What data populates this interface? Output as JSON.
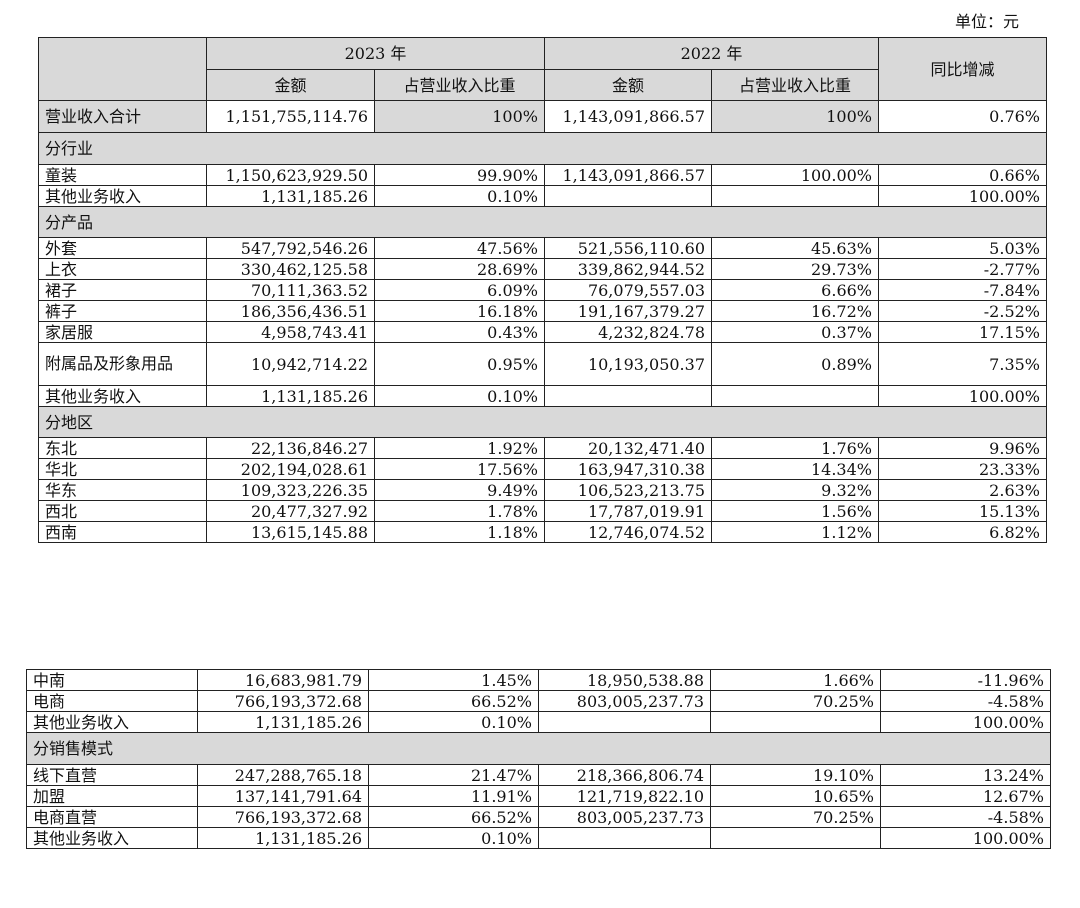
{
  "unit_label": "单位：元",
  "header": {
    "year_2023": "2023 年",
    "year_2022": "2022 年",
    "amount": "金额",
    "ratio": "占营业收入比重",
    "yoy": "同比增减"
  },
  "table1": {
    "total": {
      "label": "营业收入合计",
      "a2023": "1,151,755,114.76",
      "r2023": "100%",
      "a2022": "1,143,091,866.57",
      "r2022": "100%",
      "yoy": "0.76%"
    },
    "sec_industry": "分行业",
    "industry": [
      {
        "label": "童装",
        "a2023": "1,150,623,929.50",
        "r2023": "99.90%",
        "a2022": "1,143,091,866.57",
        "r2022": "100.00%",
        "yoy": "0.66%"
      },
      {
        "label": "其他业务收入",
        "a2023": "1,131,185.26",
        "r2023": "0.10%",
        "a2022": "",
        "r2022": "",
        "yoy": "100.00%"
      }
    ],
    "sec_product": "分产品",
    "product": [
      {
        "label": "外套",
        "a2023": "547,792,546.26",
        "r2023": "47.56%",
        "a2022": "521,556,110.60",
        "r2022": "45.63%",
        "yoy": "5.03%"
      },
      {
        "label": "上衣",
        "a2023": "330,462,125.58",
        "r2023": "28.69%",
        "a2022": "339,862,944.52",
        "r2022": "29.73%",
        "yoy": "-2.77%"
      },
      {
        "label": "裙子",
        "a2023": "70,111,363.52",
        "r2023": "6.09%",
        "a2022": "76,079,557.03",
        "r2022": "6.66%",
        "yoy": "-7.84%"
      },
      {
        "label": "裤子",
        "a2023": "186,356,436.51",
        "r2023": "16.18%",
        "a2022": "191,167,379.27",
        "r2022": "16.72%",
        "yoy": "-2.52%"
      },
      {
        "label": "家居服",
        "a2023": "4,958,743.41",
        "r2023": "0.43%",
        "a2022": "4,232,824.78",
        "r2022": "0.37%",
        "yoy": "17.15%"
      },
      {
        "label": "附属品及形象用品",
        "a2023": "10,942,714.22",
        "r2023": "0.95%",
        "a2022": "10,193,050.37",
        "r2022": "0.89%",
        "yoy": "7.35%"
      },
      {
        "label": "其他业务收入",
        "a2023": "1,131,185.26",
        "r2023": "0.10%",
        "a2022": "",
        "r2022": "",
        "yoy": "100.00%"
      }
    ],
    "sec_region": "分地区",
    "region": [
      {
        "label": "东北",
        "a2023": "22,136,846.27",
        "r2023": "1.92%",
        "a2022": "20,132,471.40",
        "r2022": "1.76%",
        "yoy": "9.96%"
      },
      {
        "label": "华北",
        "a2023": "202,194,028.61",
        "r2023": "17.56%",
        "a2022": "163,947,310.38",
        "r2022": "14.34%",
        "yoy": "23.33%"
      },
      {
        "label": "华东",
        "a2023": "109,323,226.35",
        "r2023": "9.49%",
        "a2022": "106,523,213.75",
        "r2022": "9.32%",
        "yoy": "2.63%"
      },
      {
        "label": "西北",
        "a2023": "20,477,327.92",
        "r2023": "1.78%",
        "a2022": "17,787,019.91",
        "r2022": "1.56%",
        "yoy": "15.13%"
      },
      {
        "label": "西南",
        "a2023": "13,615,145.88",
        "r2023": "1.18%",
        "a2022": "12,746,074.52",
        "r2022": "1.12%",
        "yoy": "6.82%"
      }
    ]
  },
  "table2": {
    "region_cont": [
      {
        "label": "中南",
        "a2023": "16,683,981.79",
        "r2023": "1.45%",
        "a2022": "18,950,538.88",
        "r2022": "1.66%",
        "yoy": "-11.96%"
      },
      {
        "label": "电商",
        "a2023": "766,193,372.68",
        "r2023": "66.52%",
        "a2022": "803,005,237.73",
        "r2022": "70.25%",
        "yoy": "-4.58%"
      },
      {
        "label": "其他业务收入",
        "a2023": "1,131,185.26",
        "r2023": "0.10%",
        "a2022": "",
        "r2022": "",
        "yoy": "100.00%"
      }
    ],
    "sec_sales": "分销售模式",
    "sales": [
      {
        "label": "线下直营",
        "a2023": "247,288,765.18",
        "r2023": "21.47%",
        "a2022": "218,366,806.74",
        "r2022": "19.10%",
        "yoy": "13.24%"
      },
      {
        "label": "加盟",
        "a2023": "137,141,791.64",
        "r2023": "11.91%",
        "a2022": "121,719,822.10",
        "r2022": "10.65%",
        "yoy": "12.67%"
      },
      {
        "label": "电商直营",
        "a2023": "766,193,372.68",
        "r2023": "66.52%",
        "a2022": "803,005,237.73",
        "r2022": "70.25%",
        "yoy": "-4.58%"
      },
      {
        "label": "其他业务收入",
        "a2023": "1,131,185.26",
        "r2023": "0.10%",
        "a2022": "",
        "r2022": "",
        "yoy": "100.00%"
      }
    ]
  }
}
